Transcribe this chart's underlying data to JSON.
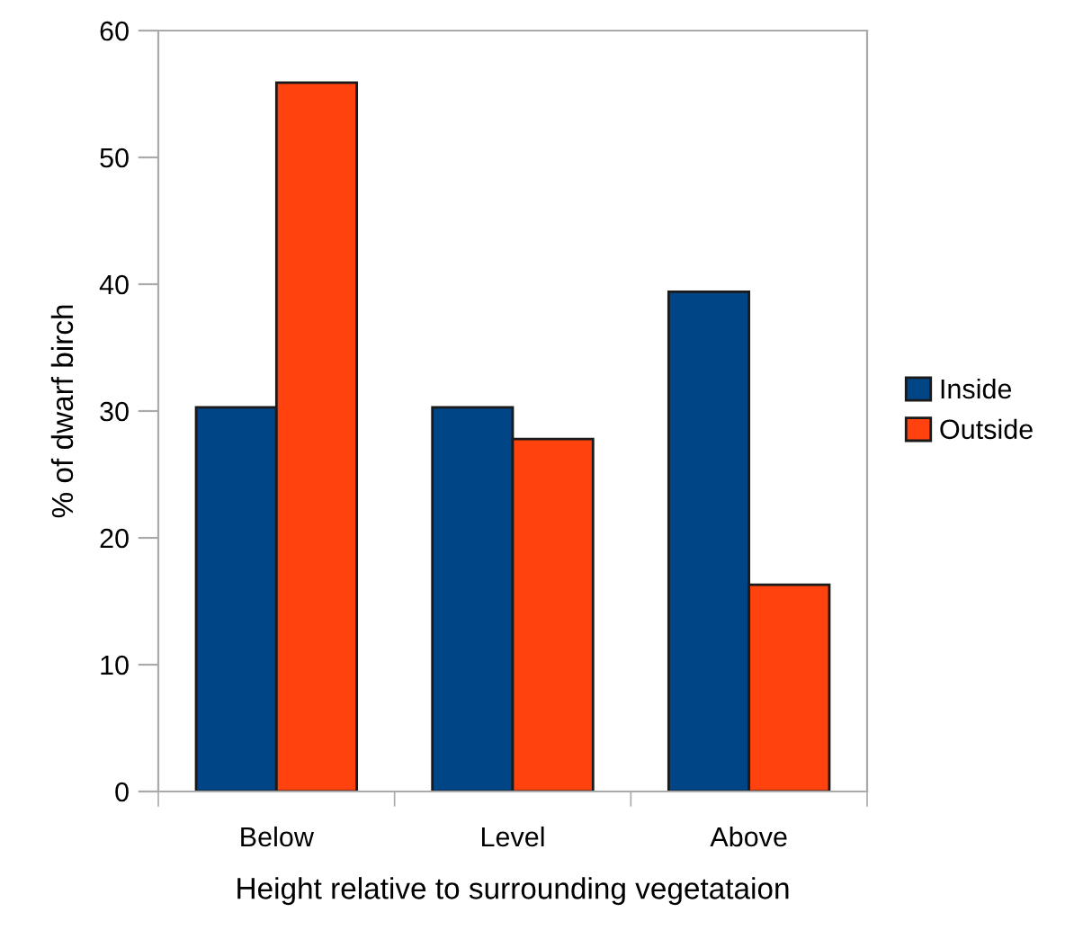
{
  "chart_data": {
    "type": "bar",
    "xlabel": "Height relative to surrounding vegetataion",
    "ylabel": "% of dwarf birch",
    "categories": [
      "Below",
      "Level",
      "Above"
    ],
    "series": [
      {
        "name": "Inside",
        "color": "#004586",
        "values": [
          30.3,
          30.3,
          39.4
        ]
      },
      {
        "name": "Outside",
        "color": "#ff420e",
        "values": [
          55.9,
          27.8,
          16.3
        ]
      }
    ],
    "ylim": [
      0,
      60
    ],
    "yticks": [
      0,
      10,
      20,
      30,
      40,
      50,
      60
    ],
    "grid": false,
    "legend": "right"
  }
}
